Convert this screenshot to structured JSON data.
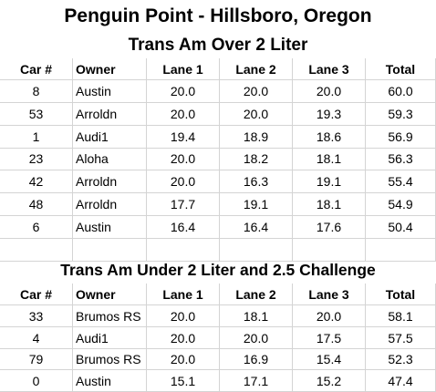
{
  "title": "Penguin Point - Hillsboro, Oregon",
  "columns": [
    "Car #",
    "Owner",
    "Lane 1",
    "Lane 2",
    "Lane 3",
    "Total"
  ],
  "sections": [
    {
      "title": "Trans Am Over 2 Liter",
      "rows": [
        [
          "8",
          "Austin",
          "20.0",
          "20.0",
          "20.0",
          "60.0"
        ],
        [
          "53",
          "Arroldn",
          "20.0",
          "20.0",
          "19.3",
          "59.3"
        ],
        [
          "1",
          "Audi1",
          "19.4",
          "18.9",
          "18.6",
          "56.9"
        ],
        [
          "23",
          "Aloha",
          "20.0",
          "18.2",
          "18.1",
          "56.3"
        ],
        [
          "42",
          "Arroldn",
          "20.0",
          "16.3",
          "19.1",
          "55.4"
        ],
        [
          "48",
          "Arroldn",
          "17.7",
          "19.1",
          "18.1",
          "54.9"
        ],
        [
          "6",
          "Austin",
          "16.4",
          "16.4",
          "17.6",
          "50.4"
        ]
      ]
    },
    {
      "title": "Trans Am Under 2 Liter and 2.5 Challenge",
      "rows": [
        [
          "33",
          "Brumos RS",
          "20.0",
          "18.1",
          "20.0",
          "58.1"
        ],
        [
          "4",
          "Audi1",
          "20.0",
          "20.0",
          "17.5",
          "57.5"
        ],
        [
          "79",
          "Brumos RS",
          "20.0",
          "16.9",
          "15.4",
          "52.3"
        ],
        [
          "0",
          "Austin",
          "15.1",
          "17.1",
          "15.2",
          "47.4"
        ]
      ]
    }
  ]
}
